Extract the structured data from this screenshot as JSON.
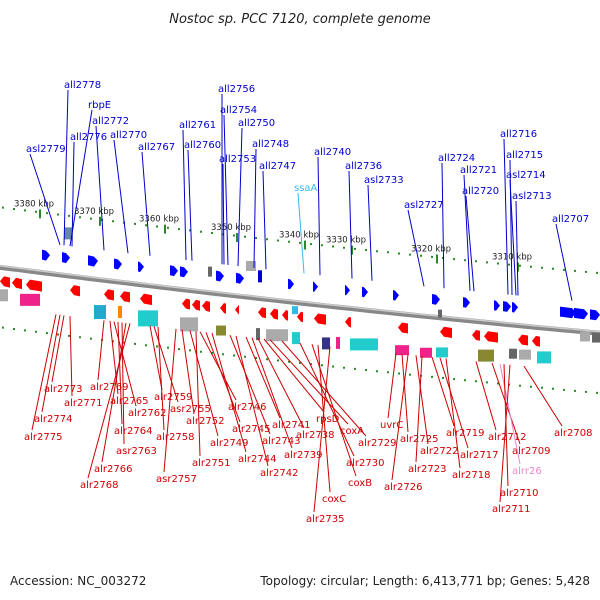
{
  "title": "Nostoc sp. PCC 7120, complete genome",
  "footer": {
    "accession": "Accession: NC_003272",
    "topology": "Topology: circular; Length: 6,413,771 bp; Genes: 5,428"
  },
  "colors": {
    "forward_gene": "#0000ff",
    "reverse_gene": "#ff0000",
    "forward_label": "#0000cc",
    "reverse_label": "#cc0000",
    "rna_forward": "#33bbee",
    "rna_reverse": "#ee88cc",
    "tick": "#2a8a2a",
    "backbone": "#888888"
  },
  "kbp_ticks": [
    "3380 kbp",
    "3370 kbp",
    "3360 kbp",
    "3350 kbp",
    "3340 kbp",
    "3330 kbp",
    "3320 kbp",
    "3310 kbp"
  ],
  "top_labels": [
    "all2778",
    "rbpE",
    "all2776",
    "asl2779",
    "all2772",
    "all2770",
    "all2767",
    "all2761",
    "all2760",
    "all2756",
    "all2754",
    "all2750",
    "all2753",
    "all2748",
    "all2747",
    "all2740",
    "ssaA",
    "all2736",
    "asl2733",
    "asl2727",
    "all2724",
    "all2721",
    "all2720",
    "all2716",
    "all2715",
    "asl2714",
    "asl2713",
    "all2707"
  ],
  "bottom_labels": [
    "alr2773",
    "alr2774",
    "alr2775",
    "alr2771",
    "alr2769",
    "alr2765",
    "alr2762",
    "alr2764",
    "asr2763",
    "alr2766",
    "alr2768",
    "alr2759",
    "asr2755",
    "alr2758",
    "asr2757",
    "alr2752",
    "alr2749",
    "alr2751",
    "alr2746",
    "alr2745",
    "alr2744",
    "alr2743",
    "alr2742",
    "alr2741",
    "alr2739",
    "alr2738",
    "rpsD",
    "coxA",
    "alr2729",
    "alr2730",
    "coxB",
    "coxC",
    "alr2735",
    "uvrC",
    "alr2725",
    "alr2726",
    "alr2722",
    "alr2723",
    "alr2719",
    "alr2717",
    "alr2718",
    "alr2712",
    "alr2709",
    "alrr26",
    "alr2710",
    "alr2711",
    "alr2708"
  ]
}
